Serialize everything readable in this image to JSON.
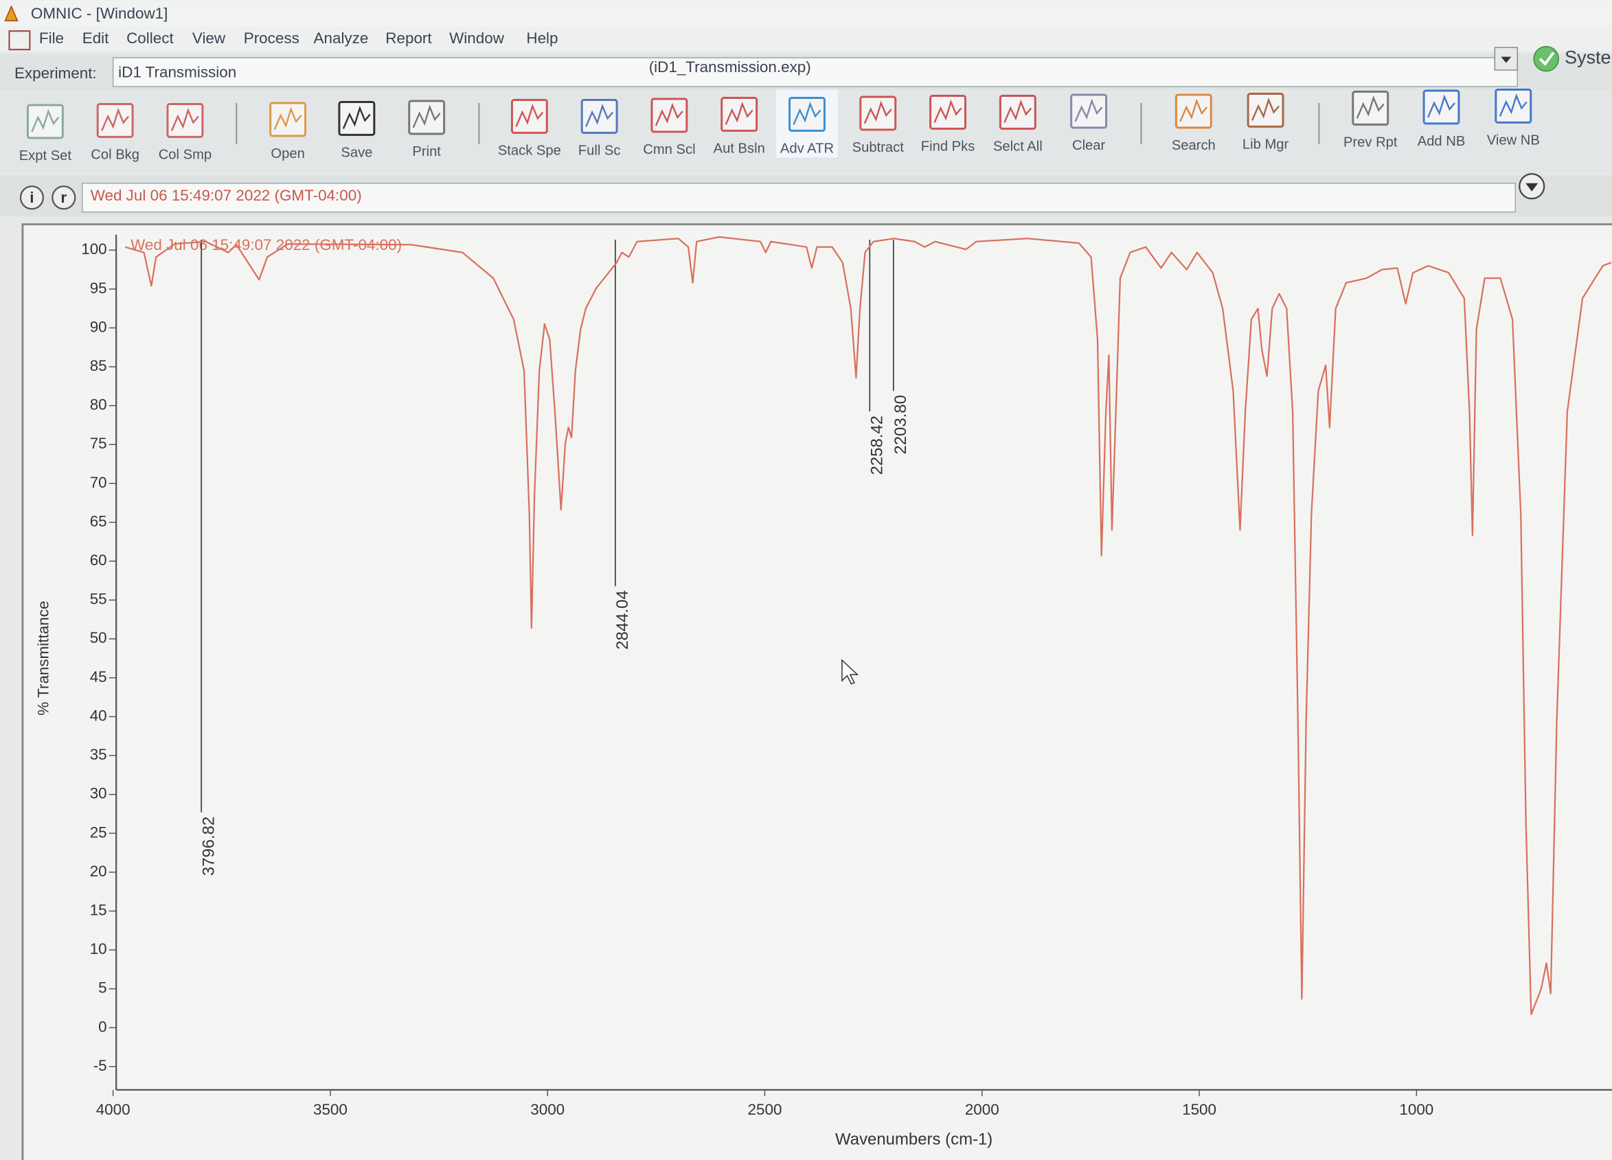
{
  "window": {
    "title": "OMNIC - [Window1]"
  },
  "menu": [
    "File",
    "Edit",
    "Collect",
    "View",
    "Process",
    "Analyze",
    "Report",
    "Window",
    "Help"
  ],
  "experiment": {
    "label": "Experiment:",
    "value": "iD1 Transmission",
    "file": "(iD1_Transmission.exp)",
    "status": "Syste"
  },
  "toolbar": [
    "Expt Set",
    "Col Bkg",
    "Col Smp",
    "Open",
    "Save",
    "Print",
    "Stack Spe",
    "Full Sc",
    "Cmn Scl",
    "Aut Bsln",
    "Adv ATR",
    "Subtract",
    "Find Pks",
    "Selct All",
    "Clear",
    "Search",
    "Lib Mgr",
    "Prev Rpt",
    "Add NB",
    "View NB"
  ],
  "info_bar": {
    "buttons": [
      "i",
      "r"
    ],
    "text": "Wed Jul 06 15:49:07 2022 (GMT-04:00)"
  },
  "chart_data": {
    "type": "line",
    "title": "Wed Jul 06 15:49:07 2022 (GMT-04:00)",
    "xlabel": "Wavenumbers (cm-1)",
    "ylabel": "% Transmittance",
    "color": "#d9705f",
    "xlim": [
      4000,
      550
    ],
    "ylim": [
      -8,
      102
    ],
    "xticks": [
      4000,
      3500,
      3000,
      2500,
      2000,
      1500,
      1000
    ],
    "yticks": [
      -5,
      0,
      5,
      10,
      15,
      20,
      25,
      30,
      35,
      40,
      45,
      50,
      55,
      60,
      65,
      70,
      75,
      80,
      85,
      90,
      95,
      100
    ],
    "peaks": [
      {
        "value": 3796.82,
        "label": "3796.82"
      },
      {
        "value": 2844.04,
        "label": "2844.04"
      },
      {
        "value": 2258.42,
        "label": "2258.42"
      },
      {
        "value": 2203.8,
        "label": "2203.80"
      }
    ],
    "x": [
      3972,
      3929,
      3912,
      3901,
      3858,
      3787,
      3735,
      3716,
      3664,
      3645,
      3598,
      3314,
      3196,
      3125,
      3078,
      3054,
      3042,
      3037,
      3030,
      3019,
      3007,
      2995,
      2983,
      2969,
      2959,
      2952,
      2945,
      2936,
      2924,
      2912,
      2888,
      2841,
      2829,
      2813,
      2794,
      2699,
      2676,
      2666,
      2657,
      2605,
      2510,
      2498,
      2486,
      2404,
      2392,
      2380,
      2345,
      2321,
      2302,
      2290,
      2281,
      2269,
      2250,
      2203,
      2155,
      2132,
      2108,
      2037,
      2013,
      1895,
      1777,
      1749,
      1734,
      1725,
      1715,
      1708,
      1701,
      1692,
      1682,
      1659,
      1623,
      1588,
      1564,
      1529,
      1505,
      1469,
      1446,
      1422,
      1406,
      1394,
      1380,
      1365,
      1356,
      1344,
      1332,
      1316,
      1299,
      1285,
      1273,
      1264,
      1254,
      1242,
      1226,
      1209,
      1200,
      1186,
      1162,
      1115,
      1079,
      1044,
      1025,
      1008,
      973,
      926,
      890,
      878,
      871,
      862,
      843,
      807,
      779,
      760,
      748,
      736,
      713,
      701,
      691,
      677,
      653,
      618,
      571,
      552
    ],
    "values": [
      100.4,
      99.7,
      95.4,
      99.1,
      100.8,
      101.1,
      99.7,
      100.7,
      96.2,
      99.1,
      100.8,
      100.7,
      99.7,
      96.4,
      91.1,
      84.5,
      66.0,
      51.4,
      68.6,
      84.5,
      90.5,
      88.5,
      79.2,
      66.6,
      75.2,
      77.2,
      75.9,
      84.5,
      89.8,
      92.5,
      95.1,
      98.4,
      99.7,
      99.1,
      101.1,
      101.5,
      100.4,
      95.8,
      101.1,
      101.7,
      101.1,
      99.7,
      101.1,
      100.4,
      97.7,
      100.4,
      100.4,
      98.4,
      92.5,
      83.6,
      92.5,
      99.7,
      101.1,
      101.5,
      101.1,
      100.4,
      101.1,
      100.1,
      101.1,
      101.5,
      100.9,
      99.1,
      88.5,
      60.7,
      79.2,
      86.5,
      64.0,
      79.2,
      96.4,
      99.7,
      100.4,
      97.7,
      99.7,
      97.5,
      99.7,
      97.1,
      92.5,
      81.9,
      64.0,
      79.2,
      91.1,
      92.5,
      87.2,
      83.8,
      92.5,
      94.4,
      92.5,
      79.2,
      39.5,
      3.7,
      39.5,
      66.0,
      81.9,
      85.2,
      77.2,
      92.5,
      95.8,
      96.4,
      97.5,
      97.7,
      93.1,
      97.1,
      98.0,
      97.1,
      93.8,
      79.2,
      63.3,
      89.8,
      96.4,
      96.4,
      91.1,
      66.0,
      26.2,
      1.7,
      5.0,
      8.3,
      4.4,
      39.5,
      79.2,
      93.8,
      98.0,
      98.4
    ]
  }
}
